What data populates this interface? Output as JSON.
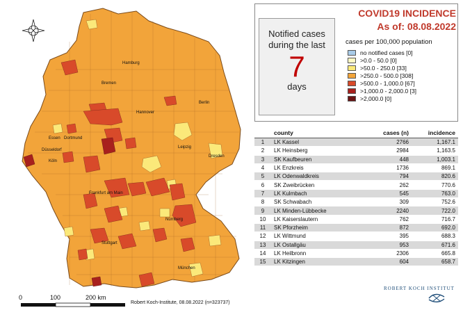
{
  "info": {
    "notified_text": "Notified cases during the last",
    "notified_number": "7",
    "notified_unit": "days",
    "title": "COVID19 INCIDENCE",
    "subtitle": "As of: 08.08.2022",
    "legend_title": "cases per 100,000 population"
  },
  "legend": [
    {
      "label": "no notified cases [0]",
      "color": "#a9cbe8"
    },
    {
      "label": ">0.0 - 50.0 [0]",
      "color": "#fff9c4"
    },
    {
      "label": ">50.0 - 250.0 [33]",
      "color": "#fbe97a"
    },
    {
      "label": ">250.0 - 500.0 [308]",
      "color": "#f2a43a"
    },
    {
      "label": ">500.0 - 1,000.0 [67]",
      "color": "#d84a2a"
    },
    {
      "label": ">1,000.0 - 2,000.0 [3]",
      "color": "#a8201d"
    },
    {
      "label": ">2,000.0 [0]",
      "color": "#6b1414"
    }
  ],
  "table": {
    "headers": {
      "rank": "",
      "county": "county",
      "cases": "cases (n)",
      "incidence": "incidence"
    },
    "rows": [
      {
        "rank": "1",
        "county": "LK Kassel",
        "cases": "2766",
        "incidence": "1,167.1"
      },
      {
        "rank": "2",
        "county": "LK Heinsberg",
        "cases": "2984",
        "incidence": "1,163.5"
      },
      {
        "rank": "3",
        "county": "SK Kaufbeuren",
        "cases": "448",
        "incidence": "1,003.1"
      },
      {
        "rank": "4",
        "county": "LK Enzkreis",
        "cases": "1736",
        "incidence": "869.1"
      },
      {
        "rank": "5",
        "county": "LK Odenwaldkreis",
        "cases": "794",
        "incidence": "820.6"
      },
      {
        "rank": "6",
        "county": "SK Zweibrücken",
        "cases": "262",
        "incidence": "770.6"
      },
      {
        "rank": "7",
        "county": "LK Kulmbach",
        "cases": "545",
        "incidence": "763.0"
      },
      {
        "rank": "8",
        "county": "SK Schwabach",
        "cases": "309",
        "incidence": "752.6"
      },
      {
        "rank": "9",
        "county": "LK Minden-Lübbecke",
        "cases": "2240",
        "incidence": "722.0"
      },
      {
        "rank": "10",
        "county": "LK Kaiserslautern",
        "cases": "762",
        "incidence": "716.7"
      },
      {
        "rank": "11",
        "county": "SK Pforzheim",
        "cases": "872",
        "incidence": "692.0"
      },
      {
        "rank": "12",
        "county": "LK Wittmund",
        "cases": "395",
        "incidence": "688.3"
      },
      {
        "rank": "13",
        "county": "LK Ostallgäu",
        "cases": "953",
        "incidence": "671.6"
      },
      {
        "rank": "14",
        "county": "LK Heilbronn",
        "cases": "2306",
        "incidence": "665.8"
      },
      {
        "rank": "15",
        "county": "LK Kitzingen",
        "cases": "604",
        "incidence": "658.7"
      }
    ]
  },
  "map": {
    "cities": [
      "Hamburg",
      "Bremen",
      "Berlin",
      "Hannover",
      "Essen",
      "Dortmund",
      "Düsseldorf",
      "Köln",
      "Leipzig",
      "Dresden",
      "Frankfurt am Main",
      "Nürnberg",
      "Stuttgart",
      "München"
    ],
    "scale_labels": [
      "0",
      "100",
      "200 km"
    ],
    "credit": "Robert Koch-Institute, 08.08.2022 (n=323737)"
  },
  "branding": {
    "name": "ROBERT KOCH INSTITUT"
  }
}
